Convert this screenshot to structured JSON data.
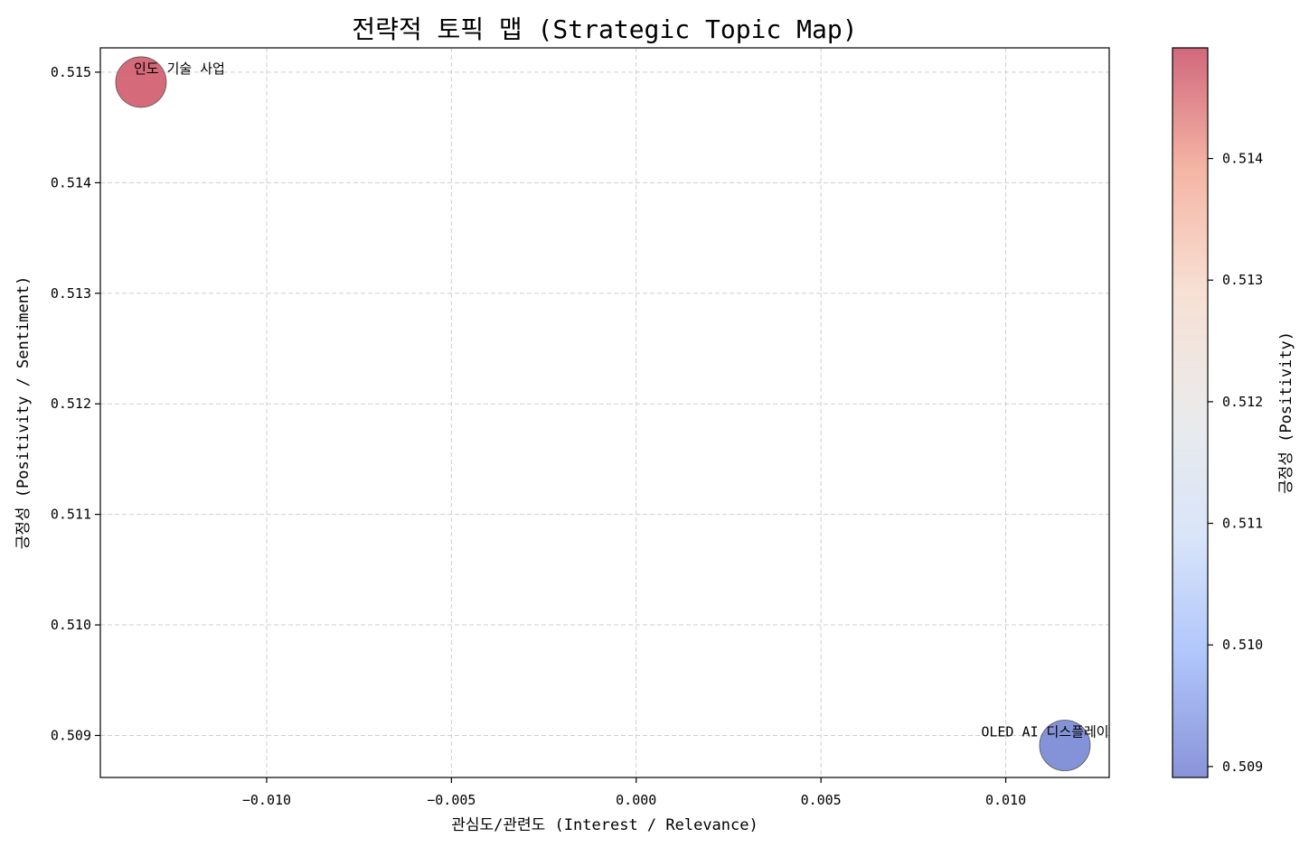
{
  "chart_data": {
    "type": "scatter",
    "title": "전략적 토픽 맵 (Strategic Topic Map)",
    "xlabel": "관심도/관련도 (Interest / Relevance)",
    "ylabel": "긍정성 (Positivity / Sentiment)",
    "xlim": [
      -0.0145,
      0.0128
    ],
    "ylim": [
      0.50862,
      0.51522
    ],
    "xticks": [
      -0.01,
      -0.005,
      0.0,
      0.005,
      0.01
    ],
    "xtick_labels": [
      "−0.010",
      "−0.005",
      "0.000",
      "0.005",
      "0.010"
    ],
    "yticks": [
      0.509,
      0.51,
      0.511,
      0.512,
      0.513,
      0.514,
      0.515
    ],
    "ytick_labels": [
      "0.509",
      "0.510",
      "0.511",
      "0.512",
      "0.513",
      "0.514",
      "0.515"
    ],
    "grid": true,
    "points": [
      {
        "label": "인도 기술 사업",
        "x": -0.0134,
        "y": 0.51491,
        "color": "#cc5063"
      },
      {
        "label": "OLED AI 디스플레이",
        "x": 0.0116,
        "y": 0.50891,
        "color": "#6f80d0"
      }
    ],
    "colorbar": {
      "label": "긍정성 (Positivity)",
      "range": [
        0.50891,
        0.51491
      ],
      "ticks": [
        0.509,
        0.51,
        0.511,
        0.512,
        0.513,
        0.514
      ],
      "tick_labels": [
        "0.509",
        "0.510",
        "0.511",
        "0.512",
        "0.513",
        "0.514"
      ],
      "colormap": "coolwarm",
      "colormap_stops": [
        "#3b4cc0",
        "#7b9ff9",
        "#c0d4f5",
        "#dddddd",
        "#f2cbb7",
        "#ee8468",
        "#b40426"
      ],
      "alpha": 0.6
    }
  }
}
